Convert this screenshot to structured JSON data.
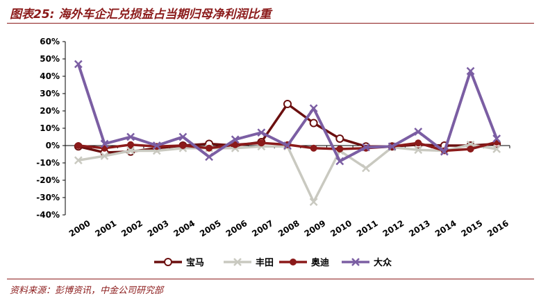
{
  "title": "图表25: 海外车企汇兑损益占当期归母净利润比重",
  "source": "资料来源：彭博资讯，中金公司研究部",
  "chart_data": {
    "type": "line",
    "x": [
      "2000",
      "2001",
      "2002",
      "2003",
      "2004",
      "2005",
      "2006",
      "2007",
      "2008",
      "2009",
      "2010",
      "2011",
      "2012",
      "2013",
      "2014",
      "2015",
      "2016"
    ],
    "ylim": [
      -40,
      60
    ],
    "yticks": [
      "60%",
      "50%",
      "40%",
      "30%",
      "20%",
      "10%",
      "0%",
      "-10%",
      "-20%",
      "-30%",
      "-40%"
    ],
    "grid": false,
    "legend_position": "bottom",
    "series": [
      {
        "name": "宝马",
        "color": "#6b0f0f",
        "marker": "circle-open",
        "values": [
          -0.5,
          -4,
          -3.5,
          -1.5,
          0,
          1,
          0,
          2,
          24,
          13,
          4,
          -0.5,
          -0.5,
          0.5,
          0,
          0,
          1
        ]
      },
      {
        "name": "丰田",
        "color": "#c9c9c0",
        "marker": "x",
        "values": [
          -8.5,
          -6,
          -3,
          -3,
          -1.5,
          -1.5,
          -1.5,
          -0.5,
          -0.5,
          -32.5,
          -3,
          -13,
          -1,
          -2.5,
          -3,
          0.5,
          -2
        ]
      },
      {
        "name": "奥迪",
        "color": "#8b1a1a",
        "marker": "circle-filled",
        "values": [
          0,
          -1.5,
          0.5,
          -0.5,
          0,
          -1.5,
          0.5,
          1.5,
          0.5,
          -1.5,
          -2,
          -1.5,
          -0.5,
          1.5,
          -3,
          -2,
          2
        ]
      },
      {
        "name": "大众",
        "color": "#7b5ea3",
        "marker": "x",
        "values": [
          47,
          1,
          5,
          0,
          5,
          -6.5,
          3.5,
          7.5,
          0,
          21.5,
          -9,
          -1,
          -0.5,
          8,
          -3.5,
          43,
          4
        ]
      }
    ]
  }
}
